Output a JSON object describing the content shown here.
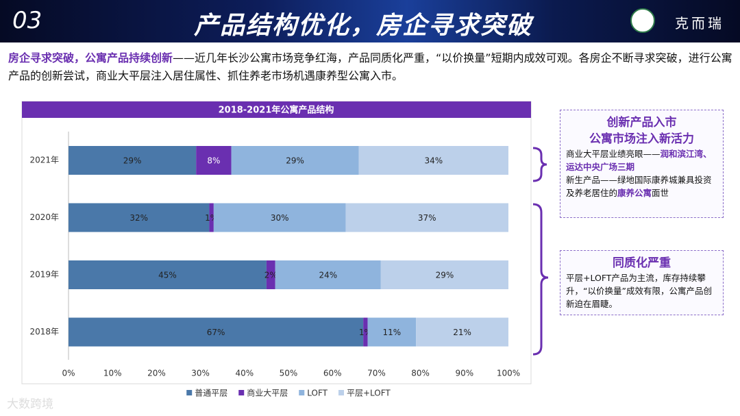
{
  "header": {
    "number": "03",
    "title": "产品结构优化，房企寻求突破",
    "logo": "克而瑞"
  },
  "intro": {
    "highlight": "房企寻求突破，公寓产品持续创新",
    "text": "——近几年长沙公寓市场竞争红海，产品同质化严重，“以价换量”短期内成效可观。各房企不断寻求突破，进行公寓产品的创新尝试，商业大平层注入居住属性、抓住养老市场机遇康养型公寓入市。"
  },
  "callouts": [
    {
      "title": [
        "创新产品入市",
        "公寓市场注入新活力"
      ],
      "body": [
        "商业大平层业绩亮眼——",
        "润和滨江湾、运达中央广场三期",
        "新生产品——绿地国际康养城兼具投资及养老居住的",
        "康养公寓",
        "面世"
      ]
    },
    {
      "title": [
        "同质化严重"
      ],
      "body": [
        "平层+LOFT产品为主流，库存持续攀升，“以价换量”成效有限，公寓产品创新迫在眉睫。"
      ]
    }
  ],
  "watermark": "大数跨境",
  "chart_data": {
    "type": "stacked-barh",
    "title": "2018-2021年公寓产品结构",
    "categories": [
      "2021年",
      "2020年",
      "2019年",
      "2018年"
    ],
    "series": [
      {
        "name": "普通平层",
        "color": "#4a78a9",
        "values": [
          29,
          32,
          45,
          67
        ],
        "value_labels": [
          "29%",
          "32%",
          "45%",
          "67%"
        ]
      },
      {
        "name": "商业大平层",
        "color": "#6a2fb0",
        "values": [
          8,
          1,
          2,
          1
        ],
        "value_labels": [
          "8%",
          "1%",
          "2%",
          "1%"
        ]
      },
      {
        "name": "LOFT",
        "color": "#8fb4dd",
        "values": [
          29,
          30,
          24,
          11
        ],
        "value_labels": [
          "29%",
          "30%",
          "24%",
          "11%"
        ]
      },
      {
        "name": "平层+LOFT",
        "color": "#bcd0ea",
        "values": [
          34,
          37,
          29,
          21
        ],
        "value_labels": [
          "34%",
          "37%",
          "29%",
          "21%"
        ]
      }
    ],
    "xlim": [
      0,
      100
    ],
    "xticks": [
      {
        "value": 0,
        "label": "0%"
      },
      {
        "value": 10,
        "label": "10%"
      },
      {
        "value": 20,
        "label": "20%"
      },
      {
        "value": 30,
        "label": "30%"
      },
      {
        "value": 40,
        "label": "40%"
      },
      {
        "value": 50,
        "label": "50%"
      },
      {
        "value": 60,
        "label": "60%"
      },
      {
        "value": 70,
        "label": "70%"
      },
      {
        "value": 80,
        "label": "80%"
      },
      {
        "value": 90,
        "label": "90%"
      },
      {
        "value": 100,
        "label": "100%"
      }
    ],
    "legend": "bottom"
  }
}
